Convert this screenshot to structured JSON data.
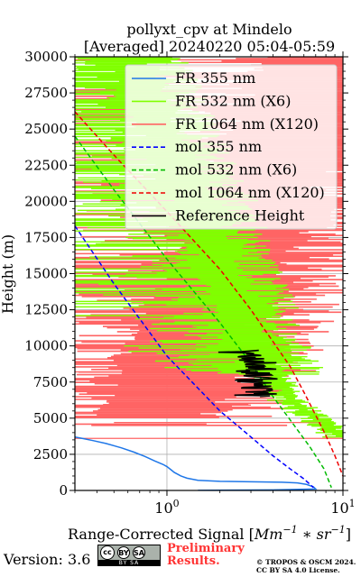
{
  "chart_data": {
    "type": "line",
    "title": "pollyxt_cpv at Mindelo",
    "subtitle": "[Averaged] 20240220 05:04-05:59",
    "xlabel_prefix": "Range-Corrected Signal ",
    "xlabel_unit_base": "Mm",
    "xlabel_unit_exp1": "−1",
    "xlabel_unit_mid": " ∗ sr",
    "xlabel_unit_exp2": "−1",
    "ylabel": "Height (m)",
    "x_scale": "log",
    "xlim": [
      0.3,
      10
    ],
    "ylim": [
      0,
      30000
    ],
    "x_ticks": [
      {
        "value": 1,
        "base": "10",
        "exp": "0"
      },
      {
        "value": 10,
        "base": "10",
        "exp": "1"
      }
    ],
    "y_ticks": [
      0,
      2500,
      5000,
      7500,
      10000,
      12500,
      15000,
      17500,
      20000,
      22500,
      25000,
      27500,
      30000
    ],
    "y_tick_labels": [
      "0",
      "2500",
      "5000",
      "7500",
      "10000",
      "12500",
      "15000",
      "17500",
      "20000",
      "22500",
      "25000",
      "27500",
      "30000"
    ],
    "grid": true,
    "legend_position": "top-right",
    "legend": [
      {
        "label": "FR 355 nm",
        "color": "#1f77e8",
        "style": "solid"
      },
      {
        "label": "FR 532 nm (X6)",
        "color": "#80ff00",
        "style": "solid"
      },
      {
        "label": "FR 1064 nm (X120)",
        "color": "#ff6464",
        "style": "solid"
      },
      {
        "label": "mol 355 nm",
        "color": "#0000ff",
        "style": "dashed"
      },
      {
        "label": "mol 532 nm (X6)",
        "color": "#00bb00",
        "style": "dashed"
      },
      {
        "label": "mol 1064 nm (X120)",
        "color": "#ee0000",
        "style": "dashed"
      },
      {
        "label": "Reference Height",
        "color": "#000000",
        "style": "solid"
      }
    ],
    "series": [
      {
        "name": "FR 355 nm",
        "color": "#1f77e8",
        "style": "solid",
        "points": [
          [
            0.3,
            3700
          ],
          [
            0.33,
            3600
          ],
          [
            0.38,
            3450
          ],
          [
            0.45,
            3250
          ],
          [
            0.55,
            2950
          ],
          [
            0.65,
            2650
          ],
          [
            0.75,
            2350
          ],
          [
            0.85,
            2050
          ],
          [
            0.95,
            1800
          ],
          [
            1.0,
            1650
          ],
          [
            1.05,
            1450
          ],
          [
            1.1,
            1250
          ],
          [
            1.2,
            1000
          ],
          [
            1.3,
            850
          ],
          [
            1.5,
            700
          ],
          [
            2.0,
            630
          ],
          [
            3.0,
            600
          ],
          [
            4.5,
            570
          ],
          [
            5.5,
            520
          ],
          [
            6.2,
            420
          ],
          [
            6.8,
            250
          ],
          [
            7.0,
            100
          ],
          [
            4.0,
            40
          ],
          [
            1.5,
            10
          ]
        ]
      },
      {
        "name": "FR 532 nm (X6)",
        "color": "#80ff00",
        "style": "solid",
        "envelope": [
          [
            0.7,
            30000
          ],
          [
            1.0,
            25500
          ],
          [
            1.3,
            22500
          ],
          [
            1.7,
            20000
          ],
          [
            2.0,
            17500
          ],
          [
            2.4,
            15000
          ],
          [
            2.9,
            12500
          ],
          [
            3.4,
            10000
          ],
          [
            4.2,
            8000
          ],
          [
            5.0,
            6500
          ],
          [
            6.2,
            5500
          ],
          [
            8.0,
            4700
          ],
          [
            10.0,
            3700
          ]
        ]
      },
      {
        "name": "FR 1064 nm (X120)",
        "color": "#ff6464",
        "style": "solid",
        "envelope": [
          [
            10.0,
            30000
          ],
          [
            6.0,
            25000
          ],
          [
            4.0,
            20000
          ],
          [
            3.2,
            17500
          ],
          [
            2.5,
            15000
          ],
          [
            2.0,
            12500
          ],
          [
            1.6,
            10000
          ],
          [
            1.4,
            8000
          ],
          [
            1.1,
            6000
          ],
          [
            0.9,
            5000
          ]
        ]
      },
      {
        "name": "mol 355 nm",
        "color": "#0000ff",
        "style": "dashed",
        "points": [
          [
            0.3,
            18300
          ],
          [
            0.5,
            14300
          ],
          [
            1.0,
            9300
          ],
          [
            2.0,
            5500
          ],
          [
            3.0,
            3700
          ],
          [
            4.0,
            2400
          ],
          [
            5.0,
            1500
          ],
          [
            6.0,
            800
          ],
          [
            6.8,
            200
          ]
        ]
      },
      {
        "name": "mol 532 nm (X6)",
        "color": "#00bb00",
        "style": "dashed",
        "points": [
          [
            0.3,
            24500
          ],
          [
            0.5,
            20800
          ],
          [
            1.0,
            16000
          ],
          [
            2.0,
            11600
          ],
          [
            3.0,
            8800
          ],
          [
            4.0,
            6500
          ],
          [
            5.0,
            4900
          ],
          [
            6.5,
            3000
          ],
          [
            7.8,
            1500
          ],
          [
            8.6,
            200
          ]
        ]
      },
      {
        "name": "mol 1064 nm (X120)",
        "color": "#ee0000",
        "style": "dashed",
        "points": [
          [
            0.3,
            26200
          ],
          [
            0.5,
            23200
          ],
          [
            1.0,
            19300
          ],
          [
            2.0,
            15300
          ],
          [
            3.0,
            12500
          ],
          [
            4.0,
            10300
          ],
          [
            5.0,
            8600
          ],
          [
            6.0,
            6800
          ],
          [
            7.0,
            5200
          ],
          [
            8.0,
            3800
          ],
          [
            9.0,
            2400
          ],
          [
            10.0,
            1000
          ]
        ]
      },
      {
        "name": "Reference Height",
        "color": "#000000",
        "style": "solid",
        "range": {
          "ymin": 6500,
          "ymax": 9700,
          "xcenter": 3.2
        }
      }
    ]
  },
  "footer": {
    "version": "Version: 3.6",
    "license_badge_top": "cc",
    "license_badge_by": "BY",
    "license_badge_sa": "SA",
    "license_badge_bottom": "BY  SA",
    "preliminary_line1": "Preliminary",
    "preliminary_line2": "Results.",
    "copyright_line1": "© TROPOS & OSCM 2024.",
    "copyright_line2": "CC BY SA 4.0 License."
  }
}
